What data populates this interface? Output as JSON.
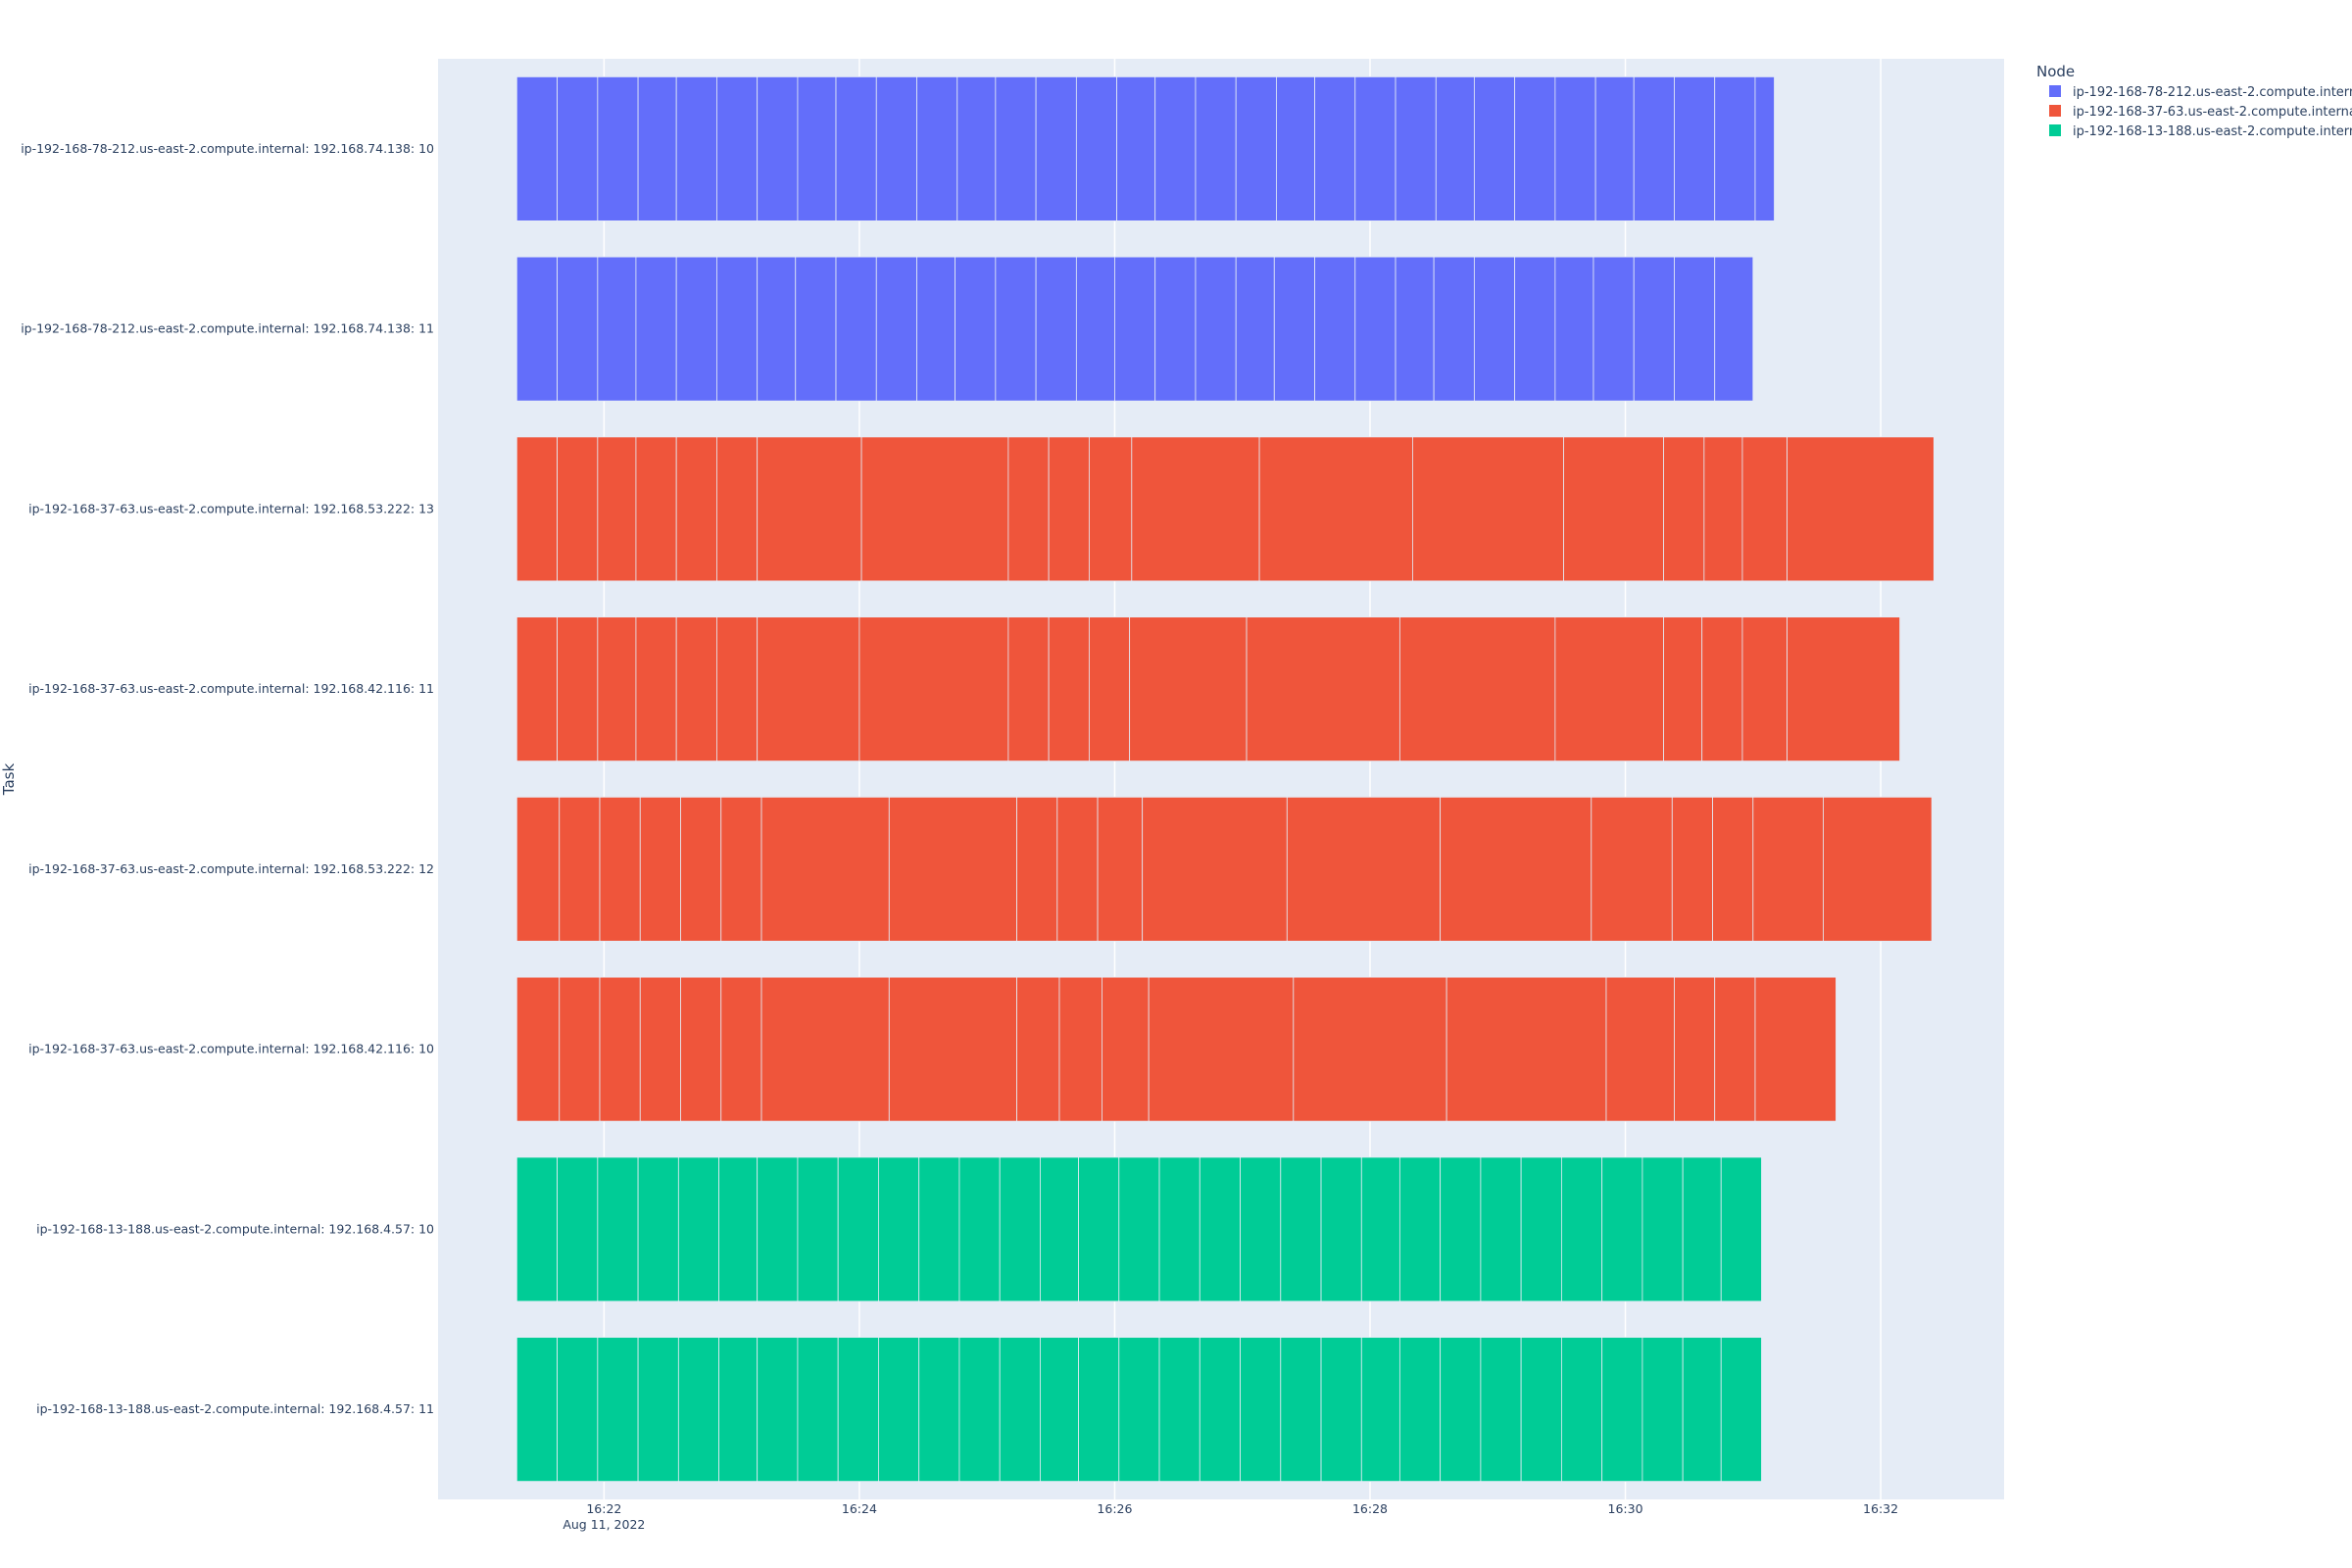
{
  "chart_data": {
    "type": "timeline",
    "ylabel": "Task",
    "legend_title": "Node",
    "legend_position": "top-right",
    "grid": true,
    "colors": {
      "ip-192-168-78-212.us-east-2.compute.internal": "#636efa",
      "ip-192-168-37-63.us-east-2.compute.internal": "#ef553b",
      "ip-192-168-13-188.us-east-2.compute.internal": "#00cc96"
    },
    "x_axis": {
      "range": [
        "2022-08-11 16:20:42",
        "2022-08-11 16:32:58"
      ],
      "ticks": [
        {
          "value": "2022-08-11 16:22:00",
          "label": "16:22",
          "sublabel": "Aug 11, 2022"
        },
        {
          "value": "2022-08-11 16:24:00",
          "label": "16:24",
          "sublabel": ""
        },
        {
          "value": "2022-08-11 16:26:00",
          "label": "16:26",
          "sublabel": ""
        },
        {
          "value": "2022-08-11 16:28:00",
          "label": "16:28",
          "sublabel": ""
        },
        {
          "value": "2022-08-11 16:30:00",
          "label": "16:30",
          "sublabel": ""
        },
        {
          "value": "2022-08-11 16:32:00",
          "label": "16:32",
          "sublabel": ""
        }
      ]
    },
    "tasks": [
      {
        "label": "ip-192-168-78-212.us-east-2.compute.internal: 192.168.74.138: 10",
        "node": "ip-192-168-78-212.us-east-2.compute.internal",
        "boundaries": [
          "16:21:19",
          "16:21:38",
          "16:21:57",
          "16:22:16",
          "16:22:34",
          "16:22:53",
          "16:23:12",
          "16:23:31",
          "16:23:49",
          "16:24:08",
          "16:24:27",
          "16:24:46",
          "16:25:04",
          "16:25:23",
          "16:25:42",
          "16:26:01",
          "16:26:19",
          "16:26:38",
          "16:26:57",
          "16:27:16",
          "16:27:34",
          "16:27:53",
          "16:28:12",
          "16:28:31",
          "16:28:49",
          "16:29:08",
          "16:29:27",
          "16:29:46",
          "16:30:04",
          "16:30:23",
          "16:30:42",
          "16:31:01",
          "16:31:10"
        ]
      },
      {
        "label": "ip-192-168-78-212.us-east-2.compute.internal: 192.168.74.138: 11",
        "node": "ip-192-168-78-212.us-east-2.compute.internal",
        "boundaries": [
          "16:21:19",
          "16:21:38",
          "16:21:57",
          "16:22:15",
          "16:22:34",
          "16:22:53",
          "16:23:12",
          "16:23:30",
          "16:23:49",
          "16:24:08",
          "16:24:27",
          "16:24:45",
          "16:25:04",
          "16:25:23",
          "16:25:42",
          "16:26:00",
          "16:26:19",
          "16:26:38",
          "16:26:57",
          "16:27:15",
          "16:27:34",
          "16:27:53",
          "16:28:12",
          "16:28:30",
          "16:28:49",
          "16:29:08",
          "16:29:27",
          "16:29:45",
          "16:30:04",
          "16:30:23",
          "16:30:42",
          "16:31:00"
        ]
      },
      {
        "label": "ip-192-168-37-63.us-east-2.compute.internal: 192.168.53.222: 13",
        "node": "ip-192-168-37-63.us-east-2.compute.internal",
        "boundaries": [
          "16:21:19",
          "16:21:38",
          "16:21:57",
          "16:22:15",
          "16:22:34",
          "16:22:53",
          "16:23:12",
          "16:24:01",
          "16:25:10",
          "16:25:29",
          "16:25:48",
          "16:26:08",
          "16:27:08",
          "16:28:20",
          "16:29:31",
          "16:30:18",
          "16:30:37",
          "16:30:55",
          "16:31:16",
          "16:32:25"
        ]
      },
      {
        "label": "ip-192-168-37-63.us-east-2.compute.internal: 192.168.42.116: 11",
        "node": "ip-192-168-37-63.us-east-2.compute.internal",
        "boundaries": [
          "16:21:19",
          "16:21:38",
          "16:21:57",
          "16:22:15",
          "16:22:34",
          "16:22:53",
          "16:23:12",
          "16:24:00",
          "16:25:10",
          "16:25:29",
          "16:25:48",
          "16:26:07",
          "16:27:02",
          "16:28:14",
          "16:29:27",
          "16:30:18",
          "16:30:36",
          "16:30:55",
          "16:31:16",
          "16:32:09"
        ]
      },
      {
        "label": "ip-192-168-37-63.us-east-2.compute.internal: 192.168.53.222: 12",
        "node": "ip-192-168-37-63.us-east-2.compute.internal",
        "boundaries": [
          "16:21:19",
          "16:21:39",
          "16:21:58",
          "16:22:17",
          "16:22:36",
          "16:22:55",
          "16:23:14",
          "16:24:14",
          "16:25:14",
          "16:25:33",
          "16:25:52",
          "16:26:13",
          "16:27:21",
          "16:28:33",
          "16:29:44",
          "16:30:22",
          "16:30:41",
          "16:31:00",
          "16:31:33",
          "16:32:24"
        ]
      },
      {
        "label": "ip-192-168-37-63.us-east-2.compute.internal: 192.168.42.116: 10",
        "node": "ip-192-168-37-63.us-east-2.compute.internal",
        "boundaries": [
          "16:21:19",
          "16:21:39",
          "16:21:58",
          "16:22:17",
          "16:22:36",
          "16:22:55",
          "16:23:14",
          "16:24:14",
          "16:25:14",
          "16:25:34",
          "16:25:54",
          "16:26:16",
          "16:27:24",
          "16:28:36",
          "16:29:51",
          "16:30:23",
          "16:30:42",
          "16:31:01",
          "16:31:39"
        ]
      },
      {
        "label": "ip-192-168-13-188.us-east-2.compute.internal: 192.168.4.57: 10",
        "node": "ip-192-168-13-188.us-east-2.compute.internal",
        "boundaries": [
          "16:21:19",
          "16:21:38",
          "16:21:57",
          "16:22:16",
          "16:22:35",
          "16:22:54",
          "16:23:12",
          "16:23:31",
          "16:23:50",
          "16:24:09",
          "16:24:28",
          "16:24:47",
          "16:25:06",
          "16:25:25",
          "16:25:43",
          "16:26:02",
          "16:26:21",
          "16:26:40",
          "16:26:59",
          "16:27:18",
          "16:27:37",
          "16:27:56",
          "16:28:14",
          "16:28:33",
          "16:28:52",
          "16:29:11",
          "16:29:30",
          "16:29:49",
          "16:30:08",
          "16:30:27",
          "16:30:45",
          "16:31:04"
        ]
      },
      {
        "label": "ip-192-168-13-188.us-east-2.compute.internal: 192.168.4.57: 11",
        "node": "ip-192-168-13-188.us-east-2.compute.internal",
        "boundaries": [
          "16:21:19",
          "16:21:38",
          "16:21:57",
          "16:22:16",
          "16:22:35",
          "16:22:54",
          "16:23:12",
          "16:23:31",
          "16:23:50",
          "16:24:09",
          "16:24:28",
          "16:24:47",
          "16:25:06",
          "16:25:25",
          "16:25:43",
          "16:26:02",
          "16:26:21",
          "16:26:40",
          "16:26:59",
          "16:27:18",
          "16:27:37",
          "16:27:56",
          "16:28:14",
          "16:28:33",
          "16:28:52",
          "16:29:11",
          "16:29:30",
          "16:29:49",
          "16:30:08",
          "16:30:27",
          "16:30:45",
          "16:31:04"
        ]
      }
    ]
  }
}
